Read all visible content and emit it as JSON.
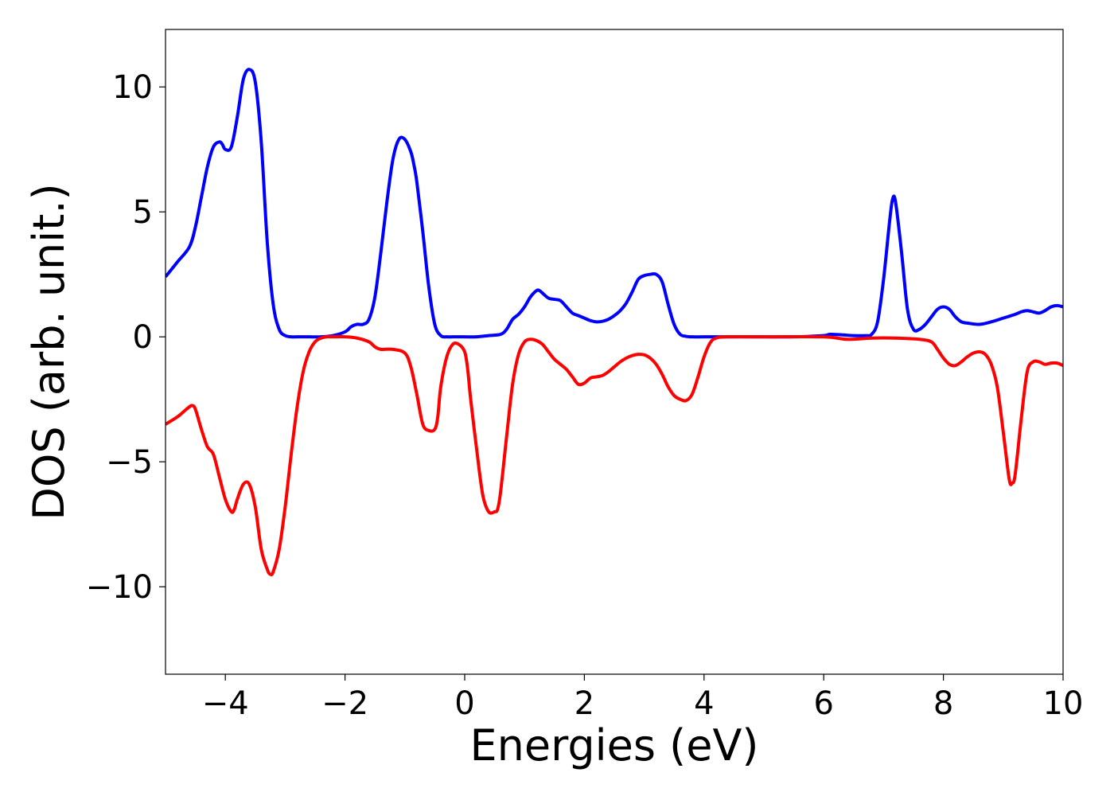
{
  "chart_data": {
    "type": "line",
    "title": "",
    "xlabel": "Energies (eV)",
    "ylabel": "DOS (arb. unit.)",
    "xlim": [
      -5,
      10
    ],
    "ylim": [
      -13.5,
      12.3
    ],
    "xticks": [
      -4,
      -2,
      0,
      2,
      4,
      6,
      8,
      10
    ],
    "xtick_labels": [
      "−4",
      "−2",
      "0",
      "2",
      "4",
      "6",
      "8",
      "10"
    ],
    "yticks": [
      -10,
      -5,
      0,
      5,
      10
    ],
    "ytick_labels": [
      "−10",
      "−5",
      "0",
      "5",
      "10"
    ],
    "grid": false,
    "legend": "none",
    "series": [
      {
        "color": "#0000ff",
        "x": [
          -5.0,
          -4.8,
          -4.6,
          -4.5,
          -4.4,
          -4.3,
          -4.2,
          -4.1,
          -4.05,
          -4.0,
          -3.9,
          -3.8,
          -3.7,
          -3.6,
          -3.5,
          -3.4,
          -3.3,
          -3.2,
          -3.1,
          -3.0,
          -2.9,
          -2.8,
          -2.6,
          -2.4,
          -2.2,
          -2.0,
          -1.9,
          -1.8,
          -1.7,
          -1.6,
          -1.5,
          -1.4,
          -1.3,
          -1.2,
          -1.1,
          -1.0,
          -0.9,
          -0.85,
          -0.8,
          -0.7,
          -0.6,
          -0.5,
          -0.4,
          -0.3,
          -0.2,
          -0.1,
          0.0,
          0.2,
          0.4,
          0.6,
          0.7,
          0.8,
          0.9,
          1.0,
          1.1,
          1.2,
          1.25,
          1.3,
          1.4,
          1.5,
          1.6,
          1.7,
          1.8,
          1.9,
          2.0,
          2.1,
          2.2,
          2.3,
          2.4,
          2.5,
          2.6,
          2.7,
          2.8,
          2.9,
          3.0,
          3.1,
          3.2,
          3.3,
          3.4,
          3.5,
          3.6,
          3.7,
          3.8,
          4.0,
          4.5,
          5.0,
          5.5,
          6.0,
          6.1,
          6.3,
          6.5,
          6.7,
          6.8,
          6.9,
          7.0,
          7.1,
          7.15,
          7.2,
          7.3,
          7.4,
          7.5,
          7.6,
          7.7,
          7.8,
          7.9,
          8.0,
          8.1,
          8.2,
          8.3,
          8.4,
          8.6,
          8.8,
          9.0,
          9.2,
          9.3,
          9.4,
          9.5,
          9.6,
          9.7,
          9.8,
          9.9,
          10.0
        ],
        "y": [
          2.4,
          3.0,
          3.6,
          4.4,
          5.6,
          6.8,
          7.6,
          7.8,
          7.7,
          7.5,
          7.6,
          8.8,
          10.3,
          10.7,
          10.2,
          7.8,
          3.8,
          1.3,
          0.3,
          0.05,
          0.0,
          0.0,
          0.0,
          0.0,
          0.05,
          0.2,
          0.4,
          0.5,
          0.5,
          0.7,
          1.6,
          3.4,
          5.4,
          7.1,
          7.9,
          7.9,
          7.4,
          6.9,
          6.2,
          4.2,
          2.0,
          0.5,
          0.05,
          0.0,
          0.0,
          0.0,
          0.0,
          0.0,
          0.05,
          0.1,
          0.3,
          0.7,
          0.9,
          1.2,
          1.6,
          1.85,
          1.85,
          1.75,
          1.55,
          1.5,
          1.45,
          1.2,
          0.95,
          0.85,
          0.75,
          0.65,
          0.6,
          0.62,
          0.7,
          0.85,
          1.05,
          1.35,
          1.8,
          2.3,
          2.45,
          2.5,
          2.5,
          2.2,
          1.3,
          0.5,
          0.1,
          0.02,
          0.0,
          0.0,
          0.0,
          0.0,
          0.0,
          0.05,
          0.1,
          0.08,
          0.05,
          0.05,
          0.1,
          0.6,
          2.3,
          4.6,
          5.5,
          5.4,
          3.4,
          1.1,
          0.3,
          0.3,
          0.5,
          0.8,
          1.1,
          1.2,
          1.1,
          0.8,
          0.6,
          0.55,
          0.5,
          0.6,
          0.75,
          0.9,
          1.0,
          1.05,
          1.0,
          0.95,
          1.05,
          1.2,
          1.25,
          1.2
        ]
      },
      {
        "color": "#ff0000",
        "x": [
          -5.0,
          -4.8,
          -4.7,
          -4.6,
          -4.55,
          -4.5,
          -4.4,
          -4.3,
          -4.2,
          -4.1,
          -4.0,
          -3.9,
          -3.85,
          -3.8,
          -3.7,
          -3.6,
          -3.5,
          -3.4,
          -3.3,
          -3.25,
          -3.2,
          -3.1,
          -3.0,
          -2.9,
          -2.8,
          -2.7,
          -2.6,
          -2.5,
          -2.4,
          -2.3,
          -2.2,
          -2.0,
          -1.8,
          -1.6,
          -1.5,
          -1.4,
          -1.2,
          -1.0,
          -0.9,
          -0.8,
          -0.7,
          -0.6,
          -0.5,
          -0.45,
          -0.4,
          -0.3,
          -0.2,
          -0.1,
          0.0,
          0.05,
          0.1,
          0.2,
          0.3,
          0.4,
          0.5,
          0.55,
          0.6,
          0.7,
          0.8,
          0.9,
          1.0,
          1.1,
          1.2,
          1.3,
          1.4,
          1.5,
          1.6,
          1.7,
          1.8,
          1.9,
          2.0,
          2.1,
          2.2,
          2.3,
          2.4,
          2.5,
          2.6,
          2.7,
          2.8,
          2.9,
          3.0,
          3.1,
          3.2,
          3.3,
          3.4,
          3.5,
          3.6,
          3.7,
          3.8,
          3.9,
          4.0,
          4.1,
          4.2,
          4.4,
          5.0,
          6.0,
          6.4,
          6.8,
          7.2,
          7.6,
          7.8,
          7.9,
          8.0,
          8.1,
          8.2,
          8.3,
          8.4,
          8.5,
          8.6,
          8.7,
          8.8,
          8.9,
          9.0,
          9.1,
          9.15,
          9.2,
          9.3,
          9.4,
          9.5,
          9.6,
          9.7,
          9.8,
          9.9,
          10.0
        ],
        "y": [
          -3.5,
          -3.2,
          -3.0,
          -2.8,
          -2.75,
          -2.9,
          -3.7,
          -4.4,
          -4.7,
          -5.6,
          -6.5,
          -7.0,
          -6.9,
          -6.5,
          -5.9,
          -5.9,
          -6.8,
          -8.5,
          -9.3,
          -9.5,
          -9.4,
          -8.5,
          -6.8,
          -4.7,
          -2.8,
          -1.4,
          -0.6,
          -0.2,
          -0.05,
          0.0,
          0.0,
          0.0,
          -0.05,
          -0.2,
          -0.4,
          -0.5,
          -0.5,
          -0.65,
          -1.2,
          -2.3,
          -3.5,
          -3.75,
          -3.7,
          -3.2,
          -2.0,
          -0.8,
          -0.3,
          -0.3,
          -0.6,
          -1.3,
          -2.5,
          -4.5,
          -6.3,
          -7.0,
          -7.0,
          -6.9,
          -6.2,
          -4.0,
          -1.9,
          -0.7,
          -0.2,
          -0.1,
          -0.15,
          -0.3,
          -0.6,
          -0.9,
          -1.1,
          -1.3,
          -1.6,
          -1.9,
          -1.85,
          -1.65,
          -1.6,
          -1.55,
          -1.4,
          -1.2,
          -1.0,
          -0.85,
          -0.75,
          -0.7,
          -0.72,
          -0.85,
          -1.1,
          -1.5,
          -2.0,
          -2.35,
          -2.5,
          -2.55,
          -2.3,
          -1.6,
          -0.8,
          -0.25,
          -0.05,
          0.0,
          0.0,
          0.0,
          -0.1,
          -0.05,
          -0.05,
          -0.1,
          -0.2,
          -0.5,
          -0.85,
          -1.1,
          -1.15,
          -1.0,
          -0.8,
          -0.65,
          -0.6,
          -0.7,
          -1.1,
          -2.0,
          -3.8,
          -5.7,
          -5.85,
          -5.5,
          -3.3,
          -1.4,
          -1.0,
          -1.0,
          -1.1,
          -1.05,
          -1.05,
          -1.15
        ]
      }
    ]
  }
}
